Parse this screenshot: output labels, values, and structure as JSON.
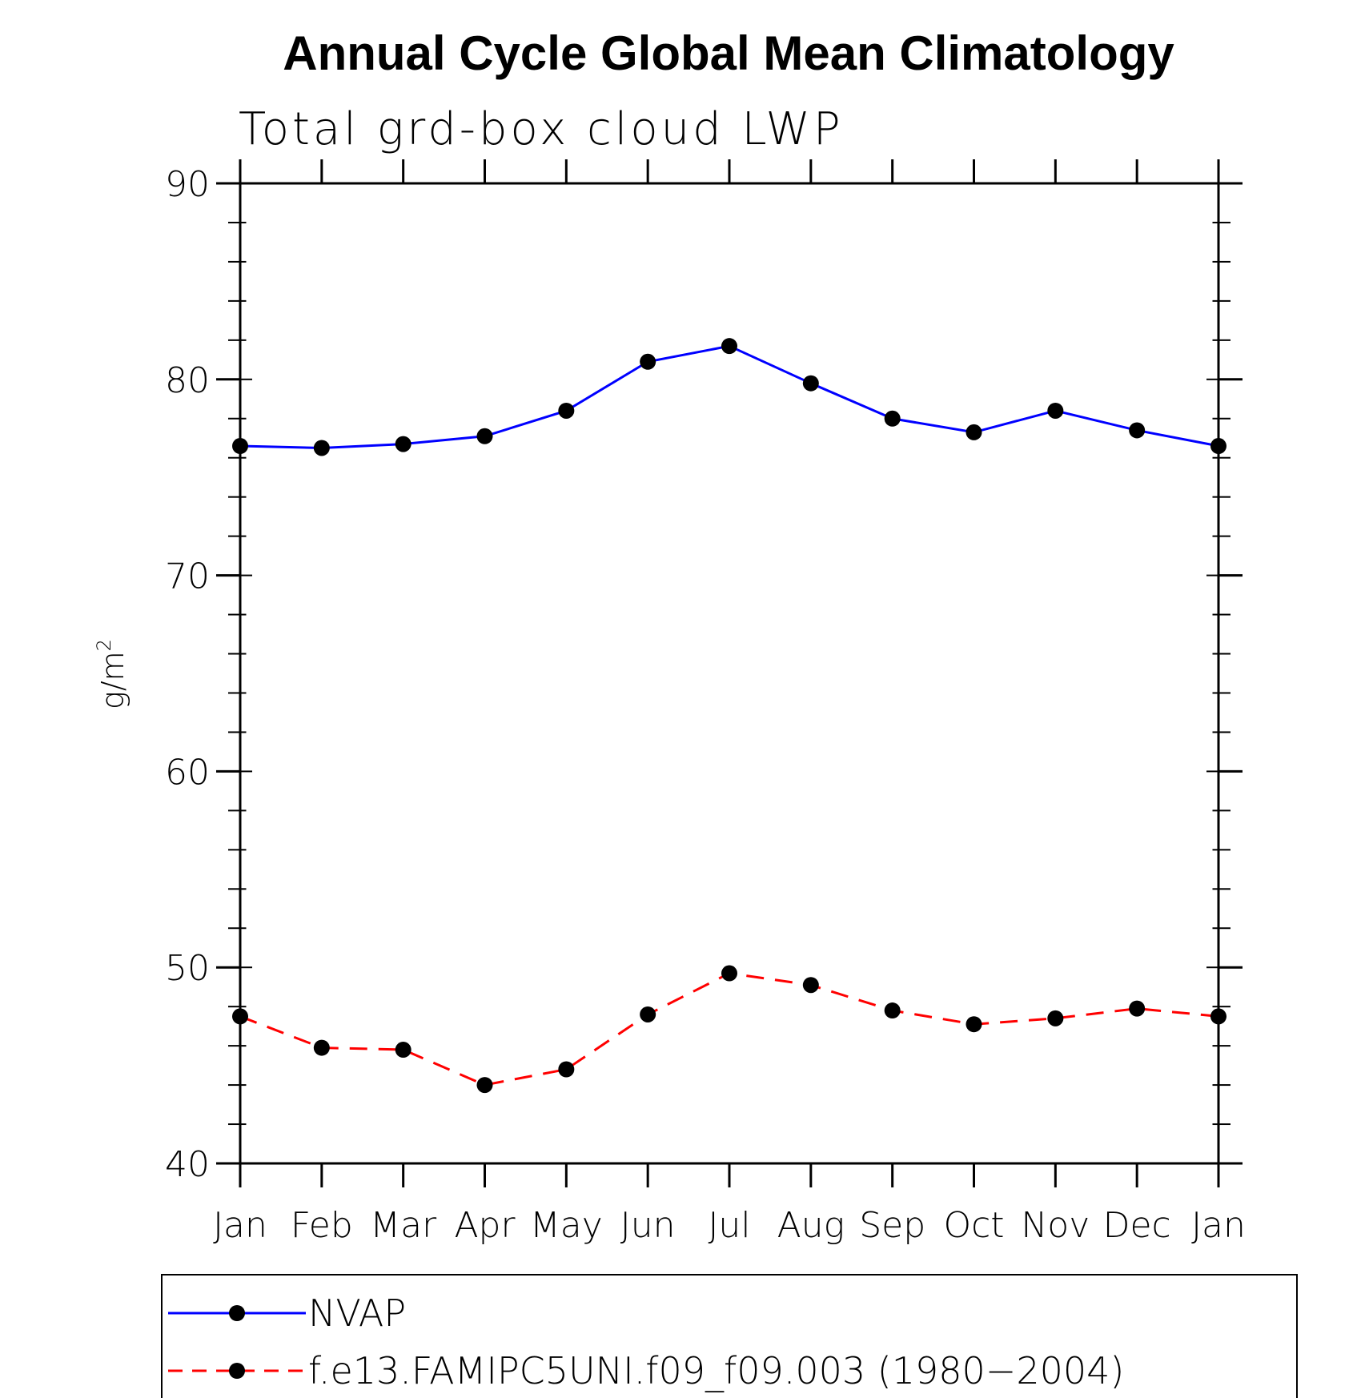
{
  "chart_data": {
    "type": "line",
    "title": "Annual Cycle Global Mean Climatology",
    "subtitle": "Total grd-box cloud LWP",
    "ylabel": "g/m",
    "ylabel_sup": "2",
    "xlabel": "",
    "categories": [
      "Jan",
      "Feb",
      "Mar",
      "Apr",
      "May",
      "Jun",
      "Jul",
      "Aug",
      "Sep",
      "Oct",
      "Nov",
      "Dec",
      "Jan"
    ],
    "ylim": [
      40,
      90
    ],
    "yticks": [
      "40",
      "50",
      "60",
      "70",
      "80",
      "90"
    ],
    "series": [
      {
        "name": "NVAP",
        "color": "#0000ff",
        "dash": "solid",
        "values": [
          76.6,
          76.5,
          76.7,
          77.1,
          78.4,
          80.9,
          81.7,
          79.8,
          78.0,
          77.3,
          78.4,
          77.4,
          76.6
        ]
      },
      {
        "name": "f.e13.FAMIPC5UNI.f09_f09.003 (1980−2004)",
        "color": "#ff0000",
        "dash": "dashed",
        "values": [
          47.5,
          45.9,
          45.8,
          44.0,
          44.8,
          47.6,
          49.7,
          49.1,
          47.8,
          47.1,
          47.4,
          47.9,
          47.5
        ]
      }
    ],
    "legend_position": "bottom",
    "grid": false
  }
}
